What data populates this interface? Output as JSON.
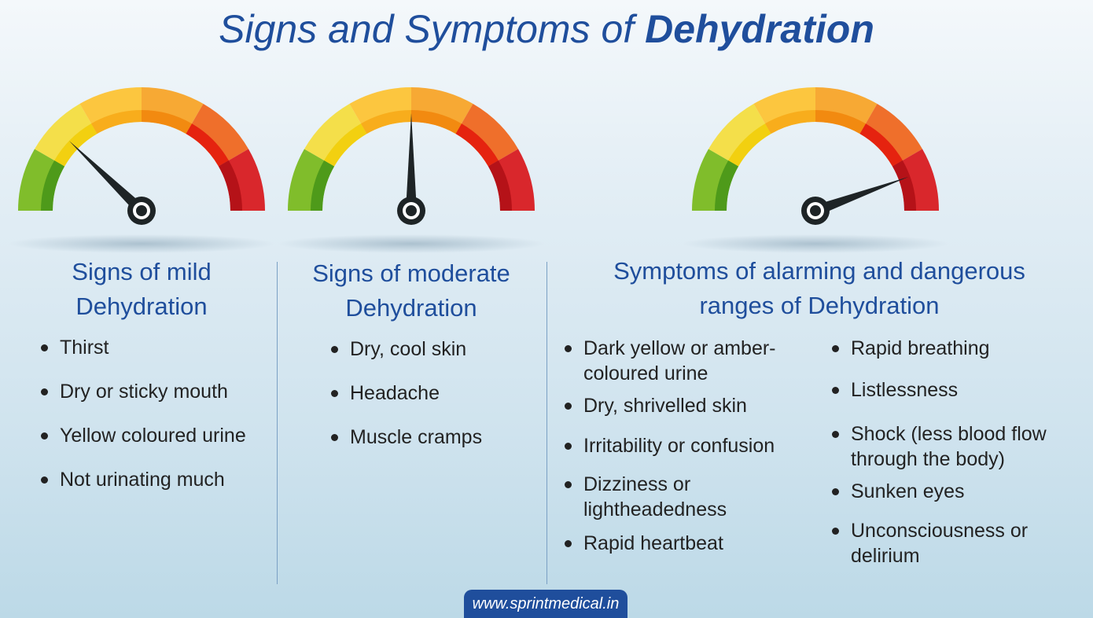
{
  "title": {
    "text": "Signs and Symptoms of",
    "emphasis": "Dehydration"
  },
  "sections": [
    {
      "heading": [
        "Signs of mild",
        "Dehydration"
      ],
      "columns": [
        [
          "Thirst",
          "Dry or sticky mouth",
          "Yellow coloured urine",
          "Not urinating much"
        ]
      ]
    },
    {
      "heading": [
        "Signs of moderate",
        "Dehydration"
      ],
      "columns": [
        [
          "Dry, cool skin",
          "Headache",
          "Muscle cramps"
        ]
      ]
    },
    {
      "heading": [
        "Symptoms of alarming and dangerous",
        "ranges of Dehydration"
      ],
      "columns": [
        [
          "Dark yellow or amber-coloured urine",
          "Dry, shrivelled skin",
          "Irritability or confusion",
          "Dizziness or lightheadedness",
          "Rapid heartbeat"
        ],
        [
          "Rapid breathing",
          "Listlessness",
          "Shock (less blood flow through the body)",
          "Sunken eyes",
          "Unconsciousness or delirium"
        ]
      ]
    }
  ],
  "footer": {
    "url": "www.sprintmedical.in"
  }
}
